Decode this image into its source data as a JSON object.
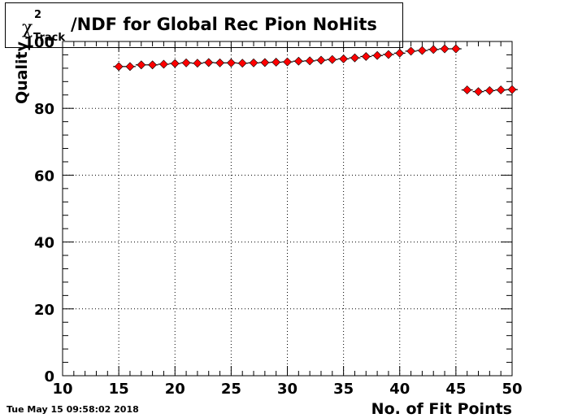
{
  "title": {
    "symbol": "χ",
    "superscript": "2",
    "subscript": "Track",
    "text": "/NDF for Global Rec Pion NoHits"
  },
  "footer": {
    "timestamp": "Tue May 15 09:58:02 2018"
  },
  "colors": {
    "marker_fill": "#ff0000",
    "line": "#000000",
    "grid": "#000000",
    "frame": "#000000"
  },
  "chart_data": {
    "type": "scatter",
    "xlabel": "No. of Fit Points",
    "ylabel": "Quality",
    "xlim": [
      10,
      50
    ],
    "ylim": [
      0,
      100
    ],
    "xticks": [
      10,
      15,
      20,
      25,
      30,
      35,
      40,
      45,
      50
    ],
    "yticks": [
      0,
      20,
      40,
      60,
      80,
      100
    ],
    "grid": true,
    "series": [
      {
        "marker": "diamond",
        "x": [
          15,
          16,
          17,
          18,
          19,
          20,
          21,
          22,
          23,
          24,
          25,
          26,
          27,
          28,
          29,
          30,
          31,
          32,
          33,
          34,
          35,
          36,
          37,
          38,
          39,
          40,
          41,
          42,
          43,
          44,
          45
        ],
        "y": [
          92.5,
          92.5,
          93.0,
          93.0,
          93.2,
          93.4,
          93.6,
          93.5,
          93.7,
          93.6,
          93.6,
          93.5,
          93.6,
          93.7,
          93.8,
          93.9,
          94.1,
          94.2,
          94.4,
          94.6,
          94.8,
          95.1,
          95.5,
          95.8,
          96.1,
          96.5,
          97.1,
          97.3,
          97.6,
          97.8,
          97.8
        ]
      },
      {
        "marker": "diamond",
        "x": [
          46,
          47,
          48,
          49,
          50
        ],
        "y": [
          85.5,
          85.0,
          85.3,
          85.5,
          85.6
        ]
      }
    ]
  }
}
